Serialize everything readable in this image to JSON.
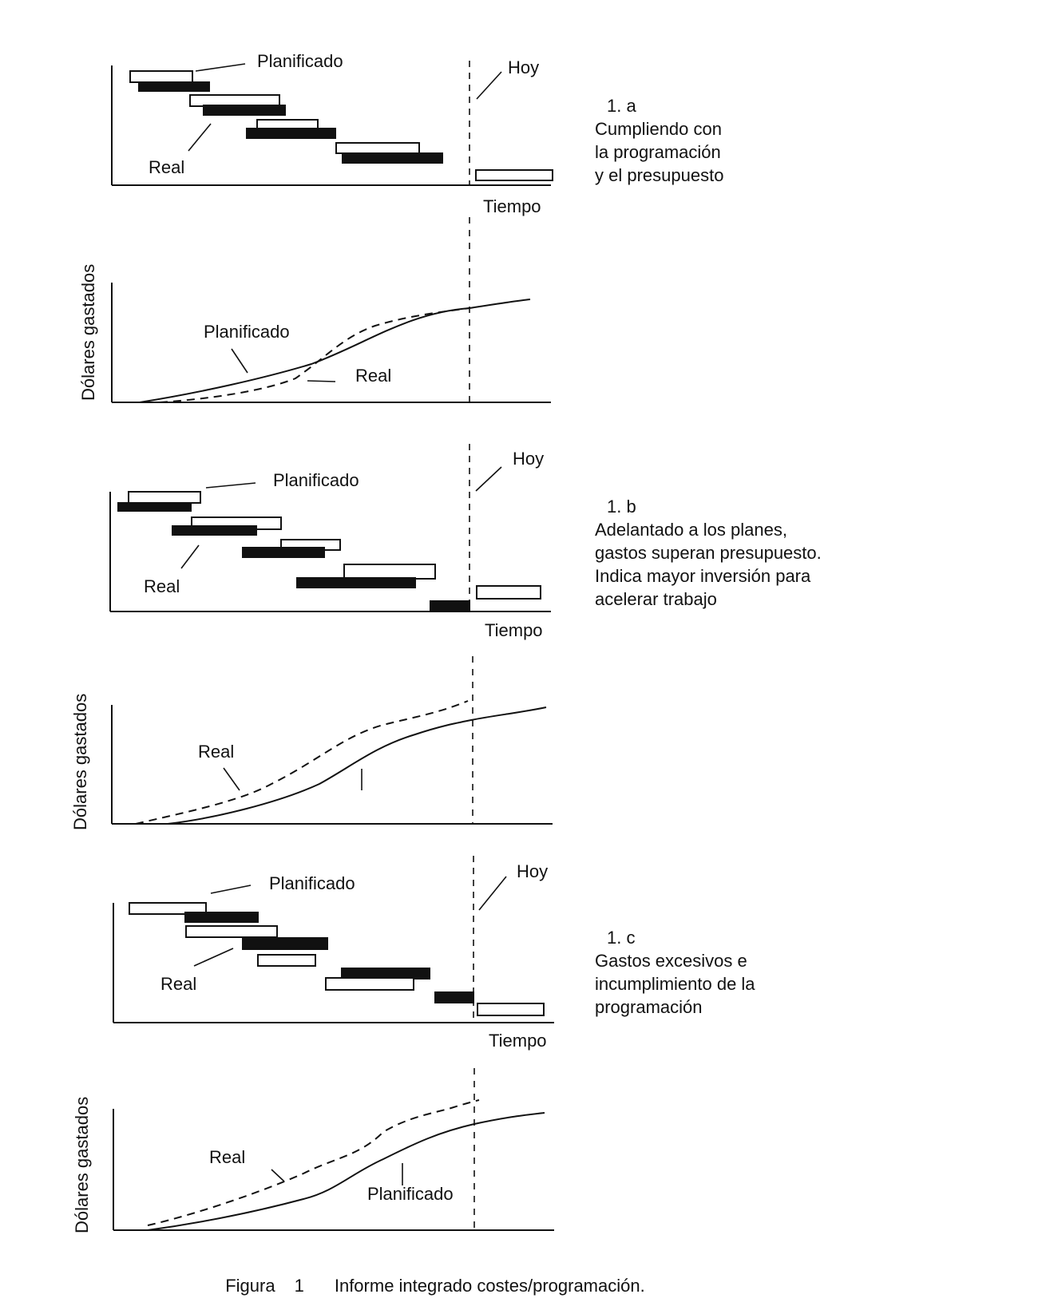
{
  "labels": {
    "planned": "Planificado",
    "actual": "Real",
    "today": "Hoy",
    "time": "Tiempo",
    "dollars": "Dólares gastados"
  },
  "panels": [
    {
      "number": "1.  a",
      "lines": [
        "Cumpliendo con",
        "la programación",
        "y el presupuesto"
      ]
    },
    {
      "number": "1.  b",
      "lines": [
        "Adelantado a los planes,",
        "gastos superan presupuesto.",
        "Indica mayor inversión para",
        "acelerar trabajo"
      ]
    },
    {
      "number": "1.  c",
      "lines": [
        "Gastos excesivos e",
        "incumplimiento de la",
        "programación"
      ]
    }
  ],
  "caption": {
    "figure": "Figura",
    "number": "1",
    "text": "Informe integrado costes/programación."
  }
}
